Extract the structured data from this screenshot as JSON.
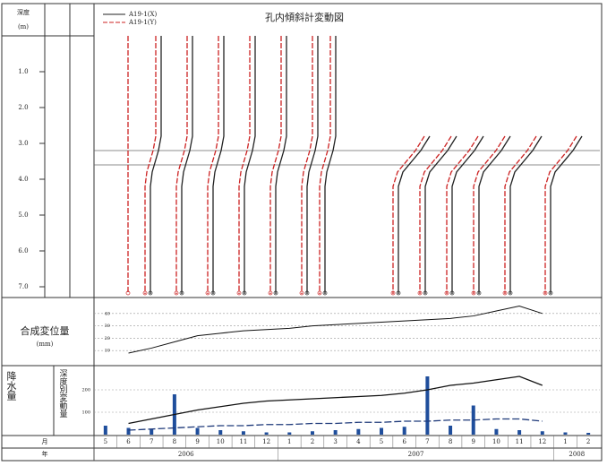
{
  "header": {
    "title": "孔内傾斜計変動図",
    "depth": "深度",
    "unit": "(m)"
  },
  "chart_data": [
    {
      "type": "line",
      "legend": "upper left",
      "depths": [
        0,
        2.8,
        3.2,
        3.8,
        4.2,
        6.2,
        7.2
      ],
      "ylim": [
        0,
        7.25
      ],
      "xlim": [
        0,
        573
      ],
      "yticks": [
        {
          "value": 1,
          "label": "1.0"
        },
        {
          "value": 2,
          "label": "2.0"
        },
        {
          "value": 3,
          "label": "3.0"
        },
        {
          "value": 4,
          "label": "4.0"
        },
        {
          "value": 5,
          "label": "5.0"
        },
        {
          "value": 6,
          "label": "6.0"
        },
        {
          "value": 7,
          "label": "7.0"
        }
      ],
      "slip_depths": [
        3.2,
        3.6
      ],
      "series": [
        {
          "name": "A19-1(X)",
          "color": "#222222",
          "profiles": [
            [
              75,
              75,
              72,
              65,
              63,
              63,
              63
            ],
            [
              110,
              110,
              107,
              100,
              98,
              98,
              98
            ],
            [
              145,
              145,
              142,
              135,
              133,
              133,
              133
            ],
            [
              180,
              180,
              177,
              170,
              168,
              168,
              168
            ],
            [
              215,
              215,
              212,
              205,
              203,
              203,
              203
            ],
            [
              250,
              250,
              247,
              240,
              238,
              238,
              238
            ],
            [
              270,
              270,
              267,
              260,
              258,
              258,
              258
            ],
            [
              null,
              375,
              365,
              345,
              340,
              340,
              340
            ],
            [
              null,
              405,
              395,
              375,
              370,
              370,
              370
            ],
            [
              null,
              435,
              425,
              405,
              400,
              400,
              400
            ],
            [
              null,
              465,
              455,
              435,
              430,
              430,
              430
            ],
            [
              null,
              500,
              490,
              470,
              465,
              465,
              465
            ],
            [
              null,
              545,
              535,
              515,
              510,
              510,
              510
            ]
          ]
        },
        {
          "name": "A19-1(Y)",
          "color": "#cc2222",
          "profiles": [
            [
              38,
              38,
              38,
              38,
              38,
              38,
              38
            ],
            [
              69,
              69,
              66,
              59,
              57,
              57,
              57
            ],
            [
              104,
              104,
              101,
              94,
              92,
              92,
              92
            ],
            [
              139,
              139,
              136,
              129,
              127,
              127,
              127
            ],
            [
              174,
              174,
              171,
              164,
              162,
              162,
              162
            ],
            [
              209,
              209,
              206,
              199,
              197,
              197,
              197
            ],
            [
              244,
              244,
              241,
              234,
              232,
              232,
              232
            ],
            [
              264,
              264,
              261,
              254,
              252,
              252,
              252
            ],
            [
              null,
              369,
              359,
              339,
              334,
              334,
              334
            ],
            [
              null,
              399,
              389,
              369,
              364,
              364,
              364
            ],
            [
              null,
              429,
              419,
              399,
              394,
              394,
              394
            ],
            [
              null,
              459,
              449,
              429,
              424,
              424,
              424
            ],
            [
              null,
              494,
              484,
              464,
              459,
              459,
              459
            ],
            [
              null,
              539,
              529,
              509,
              504,
              504,
              504
            ]
          ]
        }
      ]
    },
    {
      "type": "line",
      "ylabel": "合成変位量",
      "yunit": "(mm)",
      "ylim": [
        0,
        50
      ],
      "yticks": [
        10,
        20,
        30,
        40
      ],
      "color": "#111111",
      "values": [
        null,
        8,
        12,
        17,
        22,
        24,
        26,
        27,
        28,
        30,
        31,
        32,
        33,
        34,
        35,
        36,
        38,
        42,
        46,
        40,
        null,
        null
      ]
    },
    {
      "type": "bar",
      "ylabel": "降水量",
      "y2label": "深度別変動量",
      "ylim": [
        0,
        300
      ],
      "yticks": [
        100,
        200
      ],
      "y2lim": [
        0,
        60
      ],
      "color": "#1f4e9c",
      "values": [
        40,
        30,
        25,
        180,
        30,
        20,
        15,
        10,
        10,
        15,
        20,
        25,
        30,
        35,
        260,
        40,
        130,
        25,
        20,
        15,
        10,
        8
      ],
      "series": [
        {
          "color": "#111111",
          "axis": "y2",
          "values": [
            null,
            10,
            14,
            18,
            22,
            25,
            28,
            30,
            31,
            32,
            33,
            34,
            35,
            37,
            40,
            44,
            46,
            49,
            52,
            44,
            null,
            null
          ]
        },
        {
          "color": "#1f3a7a",
          "axis": "y2",
          "dashed": true,
          "values": [
            null,
            4,
            5,
            6,
            7,
            8,
            8,
            9,
            9,
            10,
            10,
            11,
            11,
            12,
            12,
            13,
            13,
            14,
            14,
            12,
            null,
            null
          ]
        }
      ],
      "month_label": "月",
      "year_label": "年",
      "categories": [
        "5",
        "6",
        "7",
        "8",
        "9",
        "10",
        "11",
        "12",
        "1",
        "2",
        "3",
        "4",
        "5",
        "6",
        "7",
        "8",
        "9",
        "10",
        "11",
        "12",
        "1",
        "2"
      ],
      "years": [
        {
          "label": "2006",
          "from": 0,
          "to": 8
        },
        {
          "label": "2007",
          "from": 8,
          "to": 20
        },
        {
          "label": "2008",
          "from": 20,
          "to": 22
        }
      ]
    }
  ]
}
